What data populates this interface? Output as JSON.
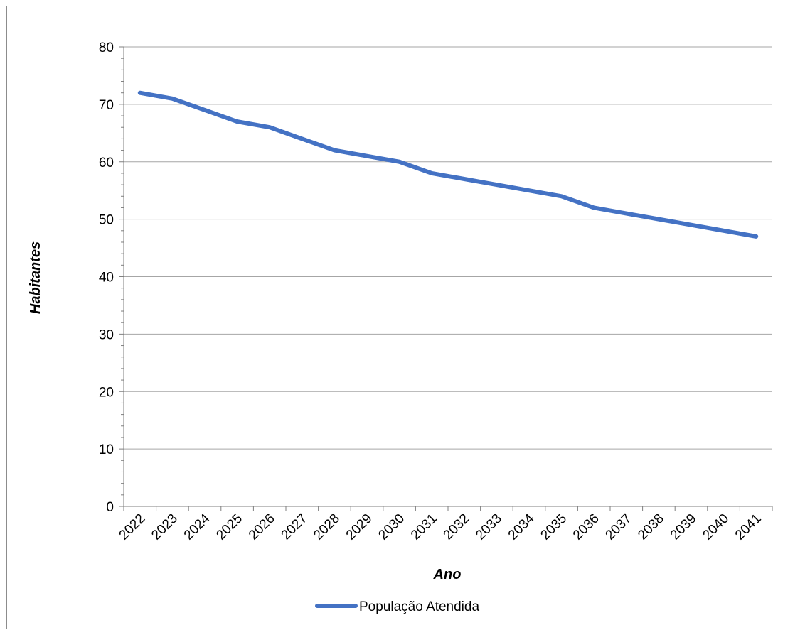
{
  "chart_data": {
    "type": "line",
    "title": "",
    "xlabel": "Ano",
    "ylabel": "Habitantes",
    "x": [
      "2022",
      "2023",
      "2024",
      "2025",
      "2026",
      "2027",
      "2028",
      "2029",
      "2030",
      "2031",
      "2032",
      "2033",
      "2034",
      "2035",
      "2036",
      "2037",
      "2038",
      "2039",
      "2040",
      "2041"
    ],
    "series": [
      {
        "name": "População Atendida",
        "values": [
          72,
          71,
          69,
          67,
          66,
          64,
          62,
          61,
          60,
          58,
          57,
          56,
          55,
          54,
          52,
          51,
          50,
          49,
          48,
          47
        ],
        "color": "#4472C4"
      }
    ],
    "ylim": [
      0,
      80
    ],
    "y_ticks": [
      0,
      10,
      20,
      30,
      40,
      50,
      60,
      70,
      80
    ],
    "grid": "horizontal major gridlines",
    "legend": "bottom-center"
  }
}
